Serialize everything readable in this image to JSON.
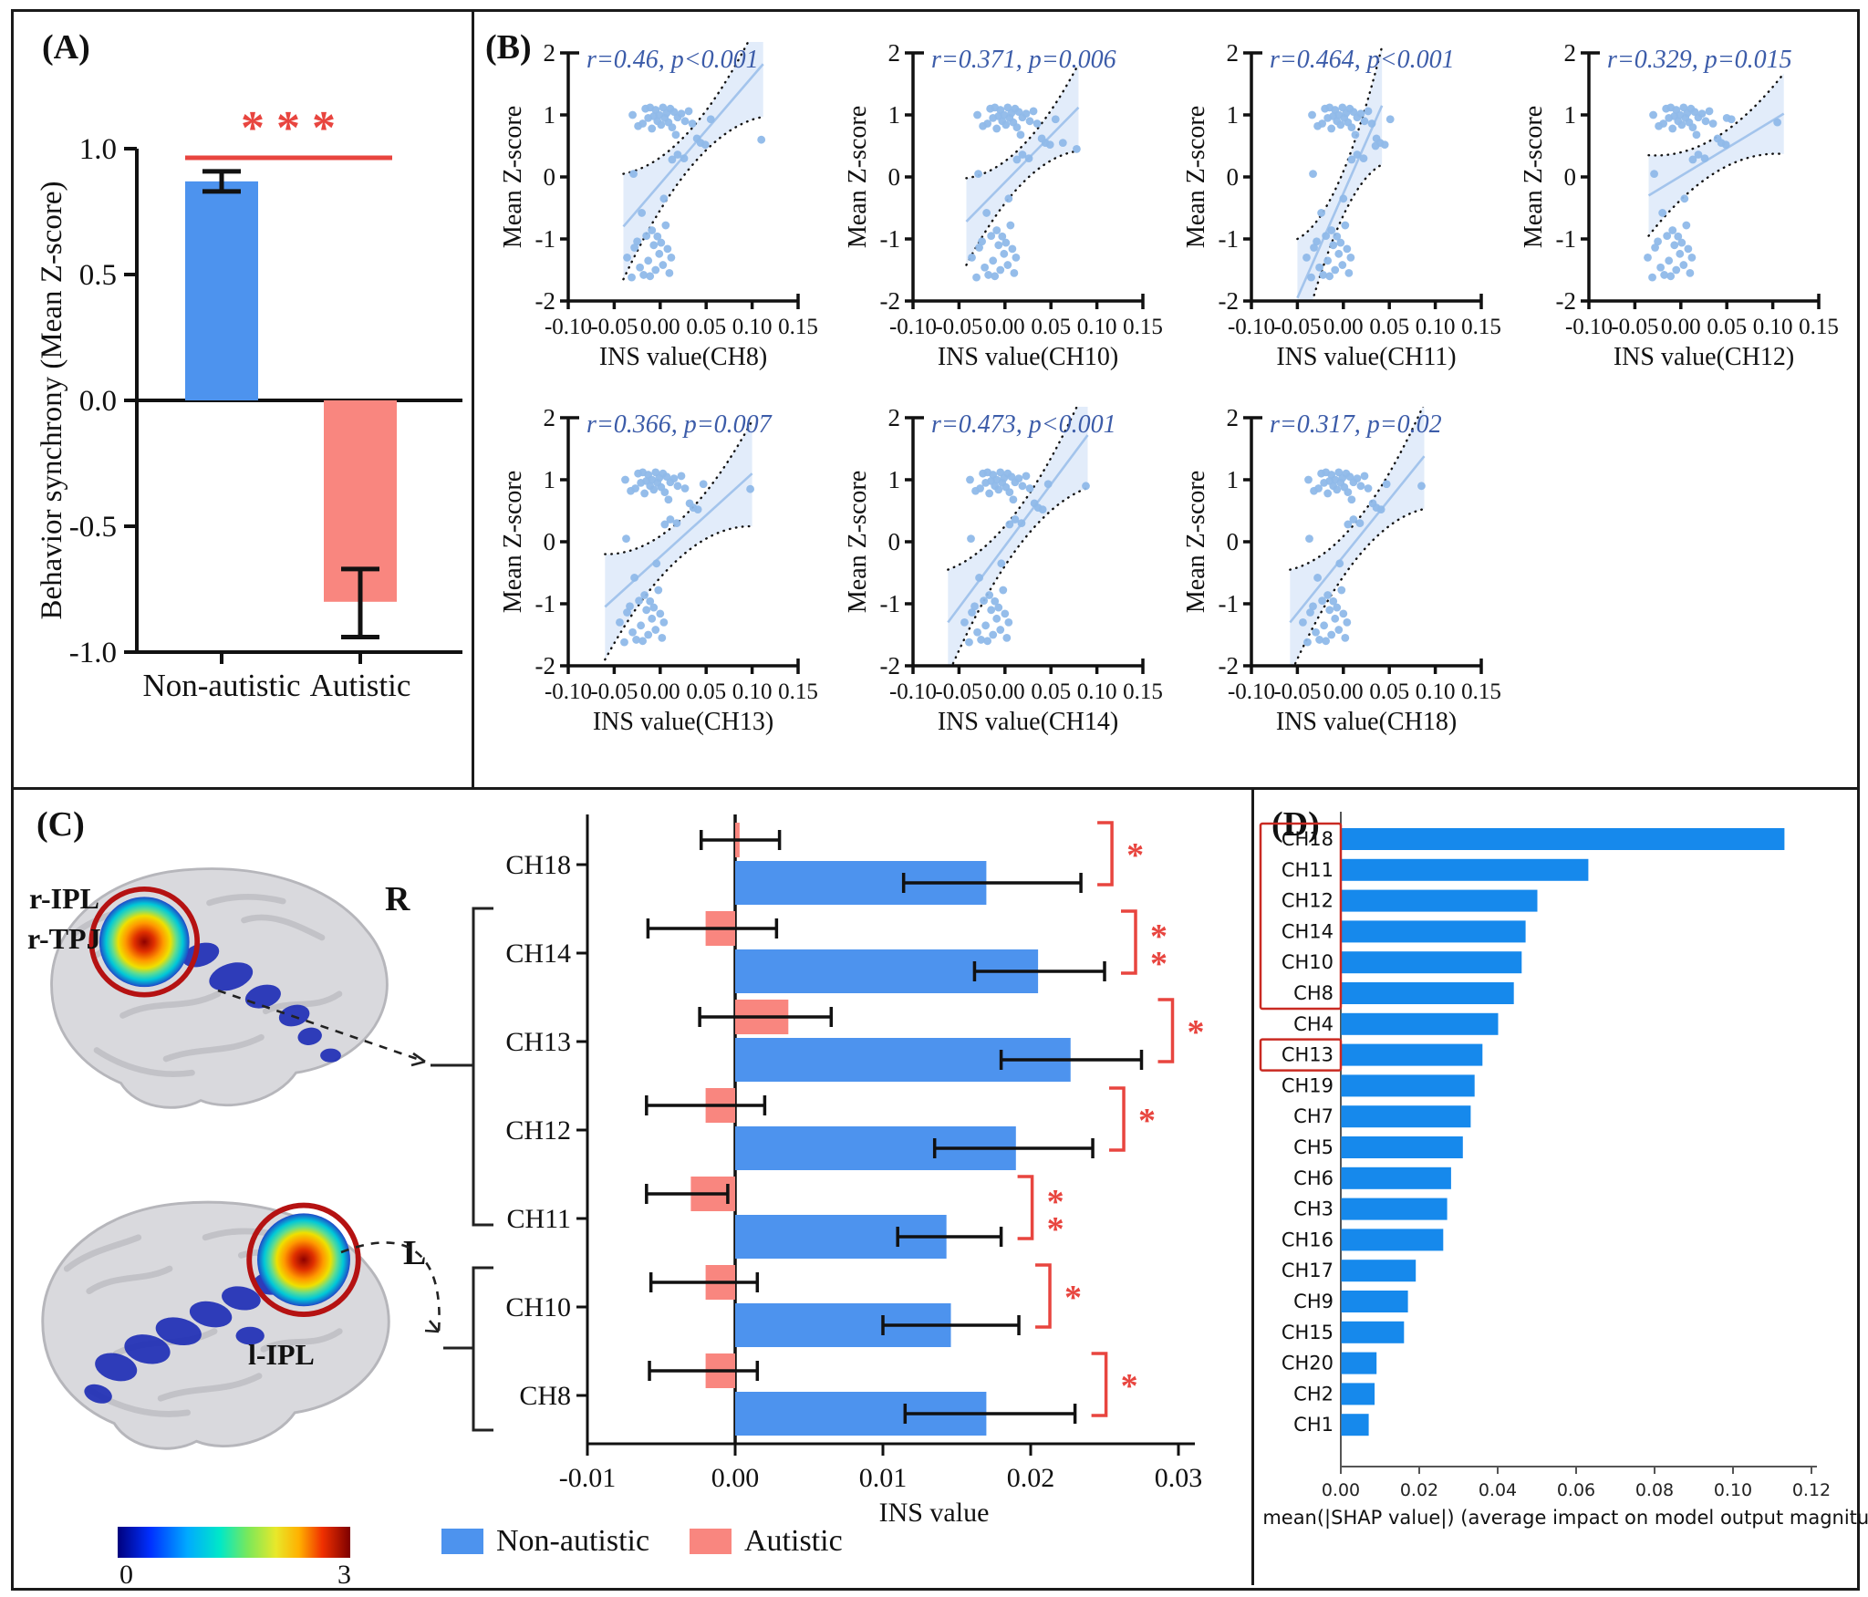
{
  "figure": {
    "colors": {
      "non_autistic_blue": "#4d93ee",
      "autistic_pink": "#f9867f",
      "shap_blue": "#1689ec",
      "scatter_point": "#8fb9e9",
      "scatter_line": "#a3c4ec",
      "scatter_band": "#cfe0f6",
      "stats_text": "#3c5ca9",
      "sig_red": "#e8453f",
      "ring_red": "#b51212",
      "box_red": "#c92a22"
    }
  },
  "chart_data": [
    {
      "id": "A",
      "panel_label": "(A)",
      "type": "bar",
      "ylabel": "Behavior synchrony (Mean Z-score)",
      "ylim": [
        -1.0,
        1.0
      ],
      "yticks": [
        1.0,
        0.5,
        0.0,
        -0.5,
        -1.0
      ],
      "ytick_labels": [
        "1.0",
        "0.5",
        "0.0",
        "-0.5",
        "-1.0"
      ],
      "significance": "* * *",
      "categories": [
        "Non-autistic",
        "Autistic"
      ],
      "bars": [
        {
          "label": "Non-autistic",
          "value": 0.87,
          "err_low": 0.83,
          "err_high": 0.91
        },
        {
          "label": "Autistic",
          "value": -0.8,
          "err_low": -0.94,
          "err_high": -0.67
        }
      ]
    },
    {
      "id": "B",
      "panel_label": "(B)",
      "type": "scatter",
      "ylabel": "Mean Z-score",
      "xlabel_prefix": "INS value",
      "xlim": [
        -0.1,
        0.15
      ],
      "ylim": [
        -2,
        2
      ],
      "xticks": [
        -0.1,
        -0.05,
        0.0,
        0.05,
        0.1,
        0.15
      ],
      "xtick_labels": [
        "-0.10",
        "-0.05",
        "0.00",
        "0.05",
        "0.10",
        "0.15"
      ],
      "ytick_labels": [
        "2",
        "1",
        "0",
        "-1",
        "-2"
      ],
      "base_points": [
        [
          -0.03,
          1.0
        ],
        [
          -0.024,
          0.82
        ],
        [
          -0.019,
          0.86
        ],
        [
          -0.016,
          1.1
        ],
        [
          -0.013,
          0.95
        ],
        [
          -0.011,
          1.12
        ],
        [
          -0.009,
          0.78
        ],
        [
          -0.007,
          0.98
        ],
        [
          -0.005,
          1.08
        ],
        [
          -0.003,
          0.9
        ],
        [
          -0.001,
          1.0
        ],
        [
          0.001,
          0.84
        ],
        [
          0.003,
          1.12
        ],
        [
          0.005,
          0.95
        ],
        [
          0.007,
          1.03
        ],
        [
          0.009,
          0.88
        ],
        [
          0.011,
          1.1
        ],
        [
          0.013,
          0.8
        ],
        [
          0.015,
          1.05
        ],
        [
          0.017,
          0.68
        ],
        [
          0.019,
          0.96
        ],
        [
          0.023,
          1.02
        ],
        [
          0.027,
          0.9
        ],
        [
          0.031,
          1.06
        ],
        [
          0.035,
          0.86
        ],
        [
          0.04,
          0.62
        ],
        [
          0.044,
          0.55
        ],
        [
          0.049,
          0.52
        ],
        [
          0.055,
          0.93
        ],
        [
          -0.029,
          0.05
        ],
        [
          -0.02,
          -0.58
        ],
        [
          0.004,
          -0.35
        ],
        [
          0.013,
          0.28
        ],
        [
          0.019,
          0.36
        ],
        [
          0.026,
          0.3
        ],
        [
          -0.036,
          -1.3
        ],
        [
          -0.031,
          -1.62
        ],
        [
          -0.028,
          -1.14
        ],
        [
          -0.025,
          -1.04
        ],
        [
          -0.022,
          -1.46
        ],
        [
          -0.018,
          -1.58
        ],
        [
          -0.015,
          -0.95
        ],
        [
          -0.013,
          -1.35
        ],
        [
          -0.011,
          -1.6
        ],
        [
          -0.009,
          -0.86
        ],
        [
          -0.007,
          -1.1
        ],
        [
          -0.005,
          -1.5
        ],
        [
          -0.003,
          -0.96
        ],
        [
          -0.001,
          -1.24
        ],
        [
          0.001,
          -1.06
        ],
        [
          0.003,
          -1.42
        ],
        [
          0.006,
          -0.78
        ],
        [
          0.008,
          -1.16
        ],
        [
          0.01,
          -1.55
        ],
        [
          0.012,
          -1.3
        ]
      ],
      "plots": [
        {
          "channel": "CH8",
          "stats": "r=0.46, p<0.001",
          "dx": 0,
          "extra": [
            [
              0.11,
              0.6
            ]
          ],
          "line": [
            -0.04,
            -0.8,
            0.112,
            1.82
          ],
          "band": [
            0.85,
            0.3
          ]
        },
        {
          "channel": "CH10",
          "stats": "r=0.371, p=0.006",
          "dx": 0,
          "extra": [
            [
              0.063,
              0.55
            ],
            [
              0.078,
              0.45
            ]
          ],
          "line": [
            -0.042,
            -0.72,
            0.08,
            1.12
          ],
          "band": [
            0.7,
            0.3
          ]
        },
        {
          "channel": "CH11",
          "stats": "r=0.464, p<0.001",
          "dx": -0.004,
          "extra": [
            [
              0.035,
              0.5
            ]
          ],
          "line": [
            -0.05,
            -1.95,
            0.042,
            1.15
          ],
          "band": [
            0.95,
            0.35
          ]
        },
        {
          "channel": "CH12",
          "stats": "r=0.329, p=0.015",
          "dx": 0,
          "extra": [
            [
              0.105,
              0.88
            ],
            [
              0.05,
              0.95
            ]
          ],
          "line": [
            -0.035,
            -0.3,
            0.112,
            1.02
          ],
          "band": [
            0.65,
            0.28
          ]
        },
        {
          "channel": "CH13",
          "stats": "r=0.366, p=0.007",
          "dx": -0.008,
          "extra": [
            [
              0.098,
              0.85
            ]
          ],
          "line": [
            -0.06,
            -1.05,
            0.1,
            1.1
          ],
          "band": [
            0.85,
            0.3
          ]
        },
        {
          "channel": "CH14",
          "stats": "r=0.473, p<0.001",
          "dx": -0.008,
          "extra": [
            [
              0.088,
              0.9
            ]
          ],
          "line": [
            -0.062,
            -1.3,
            0.09,
            1.72
          ],
          "band": [
            0.85,
            0.3
          ]
        },
        {
          "channel": "CH18",
          "stats": "r=0.317, p=0.02",
          "dx": -0.008,
          "extra": [
            [
              0.085,
              0.9
            ]
          ],
          "line": [
            -0.058,
            -1.3,
            0.088,
            1.38
          ],
          "band": [
            0.85,
            0.3
          ]
        }
      ]
    },
    {
      "id": "C",
      "panel_label": "(C)",
      "type": "bar",
      "orientation": "horizontal",
      "xlabel": "INS value",
      "xlim": [
        -0.01,
        0.031
      ],
      "xticks": [
        -0.01,
        0.0,
        0.01,
        0.02,
        0.03
      ],
      "xtick_labels": [
        "-0.01",
        "0.00",
        "0.01",
        "0.02",
        "0.03"
      ],
      "brain_labels": {
        "top_region_1": "r-IPL",
        "top_region_2": "r-TPJ",
        "top_hemi": "R",
        "bottom_hemi": "L",
        "bottom_region": "l-IPL"
      },
      "colorbar": {
        "min": "0",
        "max": "3"
      },
      "legend": [
        {
          "label": "Non-autistic",
          "color": "#4d93ee"
        },
        {
          "label": "Autistic",
          "color": "#f9867f"
        }
      ],
      "channels": [
        {
          "name": "CH18",
          "autistic": {
            "value": 0.0003,
            "err": [
              -0.0023,
              0.003
            ]
          },
          "non_autistic": {
            "value": 0.017,
            "err": [
              0.0114,
              0.0234
            ]
          },
          "sig": "*"
        },
        {
          "name": "CH14",
          "autistic": {
            "value": -0.002,
            "err": [
              -0.0059,
              0.0028
            ]
          },
          "non_autistic": {
            "value": 0.0205,
            "err": [
              0.0162,
              0.025
            ]
          },
          "sig": "**"
        },
        {
          "name": "CH13",
          "autistic": {
            "value": 0.0036,
            "err": [
              -0.0024,
              0.0065
            ]
          },
          "non_autistic": {
            "value": 0.0227,
            "err": [
              0.018,
              0.0275
            ]
          },
          "sig": "*"
        },
        {
          "name": "CH12",
          "autistic": {
            "value": -0.002,
            "err": [
              -0.006,
              0.002
            ]
          },
          "non_autistic": {
            "value": 0.019,
            "err": [
              0.0135,
              0.0242
            ]
          },
          "sig": "*"
        },
        {
          "name": "CH11",
          "autistic": {
            "value": -0.003,
            "err": [
              -0.006,
              -0.0005
            ]
          },
          "non_autistic": {
            "value": 0.0143,
            "err": [
              0.011,
              0.018
            ]
          },
          "sig": "**"
        },
        {
          "name": "CH10",
          "autistic": {
            "value": -0.002,
            "err": [
              -0.0057,
              0.0015
            ]
          },
          "non_autistic": {
            "value": 0.0146,
            "err": [
              0.01,
              0.0192
            ]
          },
          "sig": "*"
        },
        {
          "name": "CH8",
          "autistic": {
            "value": -0.002,
            "err": [
              -0.0058,
              0.0015
            ]
          },
          "non_autistic": {
            "value": 0.017,
            "err": [
              0.0115,
              0.023
            ]
          },
          "sig": "*"
        }
      ]
    },
    {
      "id": "D",
      "panel_label": "(D)",
      "type": "bar",
      "orientation": "horizontal",
      "xlabel": "mean(|SHAP value|) (average impact on model output magnitude)",
      "xlim": [
        0,
        0.12
      ],
      "xticks": [
        0.0,
        0.02,
        0.04,
        0.06,
        0.08,
        0.1,
        0.12
      ],
      "xtick_labels": [
        "0.00",
        "0.02",
        "0.04",
        "0.06",
        "0.08",
        "0.10",
        "0.12"
      ],
      "categories": [
        "CH18",
        "CH11",
        "CH12",
        "CH14",
        "CH10",
        "CH8",
        "CH4",
        "CH13",
        "CH19",
        "CH7",
        "CH5",
        "CH6",
        "CH3",
        "CH16",
        "CH17",
        "CH9",
        "CH15",
        "CH20",
        "CH2",
        "CH1"
      ],
      "values": [
        0.113,
        0.063,
        0.05,
        0.047,
        0.046,
        0.044,
        0.04,
        0.036,
        0.034,
        0.033,
        0.031,
        0.028,
        0.027,
        0.026,
        0.019,
        0.017,
        0.016,
        0.009,
        0.0085,
        0.007
      ],
      "highlight_boxes": [
        [
          0,
          5
        ],
        [
          7,
          7
        ]
      ]
    }
  ]
}
